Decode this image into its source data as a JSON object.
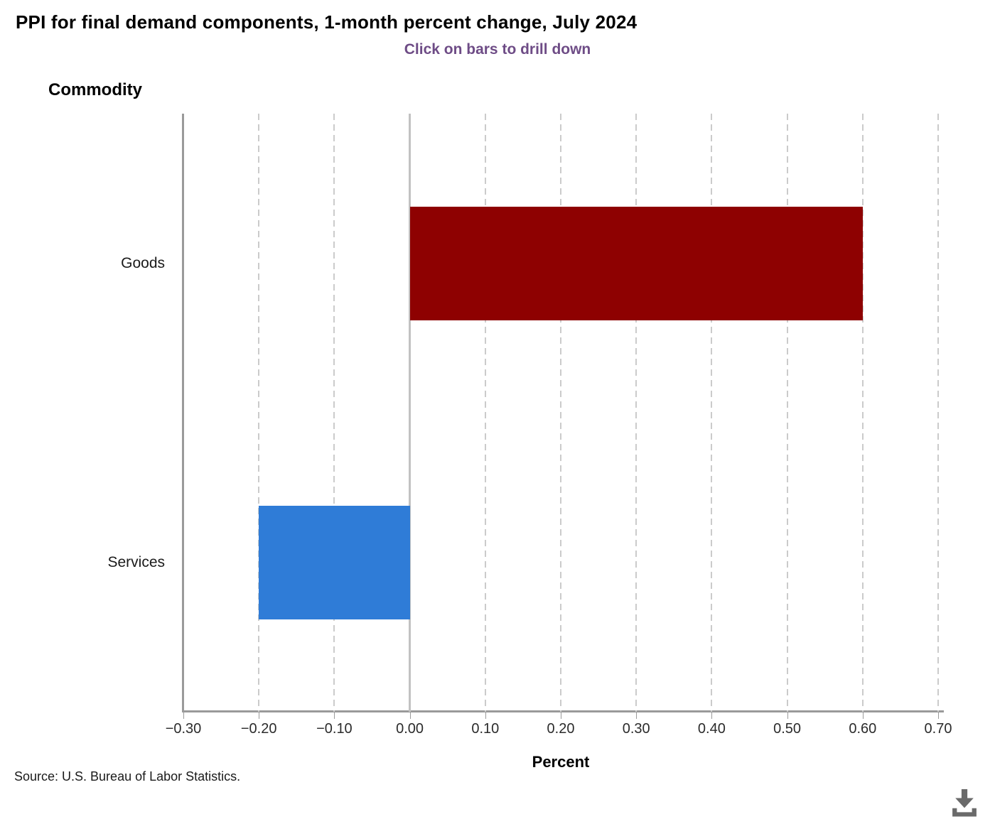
{
  "header": {
    "title": "PPI for final demand components, 1-month percent change, July 2024",
    "subtitle": "Click on bars to drill down"
  },
  "chart_data": {
    "type": "bar",
    "orientation": "horizontal",
    "title": "PPI for final demand components, 1-month percent change, July 2024",
    "subtitle": "Click on bars to drill down",
    "ylabel": "Commodity",
    "xlabel": "Percent",
    "categories": [
      "Goods",
      "Services"
    ],
    "values": [
      0.6,
      -0.2
    ],
    "bar_colors": [
      "#8E0101",
      "#2F7CD7"
    ],
    "xlim": [
      -0.3,
      0.7
    ],
    "xticks": [
      -0.3,
      -0.2,
      -0.1,
      0.0,
      0.1,
      0.2,
      0.3,
      0.4,
      0.5,
      0.6,
      0.7
    ],
    "xtick_labels": [
      "−0.30",
      "−0.20",
      "−0.10",
      "0.00",
      "0.10",
      "0.20",
      "0.30",
      "0.40",
      "0.50",
      "0.60",
      "0.70"
    ],
    "grid": "vertical-dashed",
    "legend": "none"
  },
  "footer": {
    "source": "Source: U.S. Bureau of Labor Statistics."
  },
  "icons": {
    "download": {
      "name": "download-icon",
      "color": "#6a6a6a"
    }
  },
  "colors": {
    "subtitle": "#6E4C86",
    "axis_line": "#9a9a9a",
    "zero_line": "#c2c2c2",
    "gridline": "#cbcbcb",
    "background": "#ffffff"
  }
}
